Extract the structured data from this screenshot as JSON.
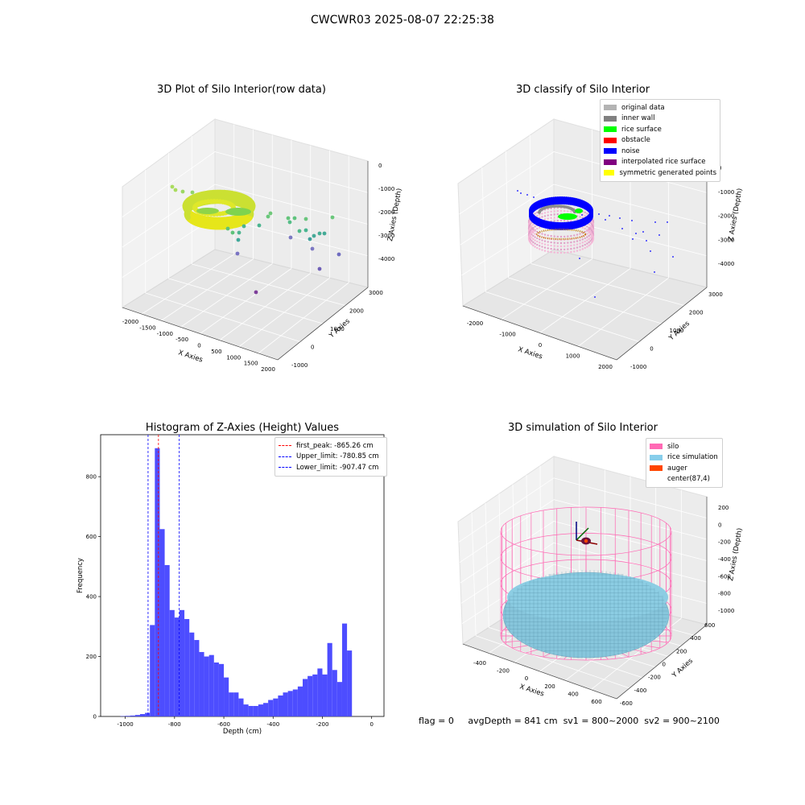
{
  "suptitle": "CWCWR03 2025-08-07 22:25:38",
  "panel1": {
    "title": "3D Plot of Silo Interior(row data)",
    "xlabel": "X Axies",
    "ylabel": "Y Axies",
    "zlabel": "Z Axies (Depth)",
    "xticks": [
      "-2000",
      "-1500",
      "-1000",
      "-500",
      "0",
      "500",
      "1000",
      "1500",
      "2000"
    ],
    "yticks": [
      "-1000",
      "0",
      "1000",
      "2000",
      "3000"
    ],
    "zticks": [
      "0",
      "-1000",
      "-2000",
      "-3000",
      "-4000"
    ]
  },
  "panel2": {
    "title": "3D classify of Silo Interior",
    "xlabel": "X Axies",
    "ylabel": "Y Axies",
    "zlabel": "Z Axies (Depth)",
    "xticks": [
      "-2000",
      "-1000",
      "0",
      "1000",
      "2000"
    ],
    "yticks": [
      "-1000",
      "0",
      "1000",
      "2000",
      "3000"
    ],
    "zticks": [
      "0",
      "-1000",
      "-2000",
      "-3000",
      "-4000"
    ],
    "legend": [
      {
        "label": "original data",
        "color": "#b3b3b3"
      },
      {
        "label": "inner wall",
        "color": "#808080"
      },
      {
        "label": "rice surface",
        "color": "#00ff00"
      },
      {
        "label": "obstacle",
        "color": "#ff0000"
      },
      {
        "label": "noise",
        "color": "#0000ff"
      },
      {
        "label": "interpolated rice surface",
        "color": "#800080"
      },
      {
        "label": "symmetric generated points",
        "color": "#ffff00"
      }
    ]
  },
  "panel3": {
    "title": "Histogram of Z-Axies (Height) Values",
    "xlabel": "Depth (cm)",
    "ylabel": "Frequency",
    "legend": [
      {
        "label": "first_peak: -865.26 cm",
        "color": "#ff0000"
      },
      {
        "label": "Upper_limit: -780.85 cm",
        "color": "#0000ff"
      },
      {
        "label": "Lower_limit: -907.47 cm",
        "color": "#0000ff"
      }
    ]
  },
  "panel4": {
    "title": "3D simulation of Silo Interior",
    "xlabel": "X Axies",
    "ylabel": "Y Axies",
    "zlabel": "Z Axies (Depth)",
    "xticks": [
      "-400",
      "-200",
      "0",
      "200",
      "400",
      "600"
    ],
    "yticks": [
      "-600",
      "-400",
      "-200",
      "0",
      "200",
      "400",
      "600"
    ],
    "zticks": [
      "200",
      "0",
      "-200",
      "-400",
      "-600",
      "-800",
      "-1000"
    ],
    "legend": [
      {
        "label": "silo",
        "color": "#ff69b4"
      },
      {
        "label": "rice simulation",
        "color": "#87ceeb"
      },
      {
        "label": "auger",
        "color": "#ff4500"
      },
      {
        "label": "center(87,4)",
        "color": ""
      }
    ]
  },
  "status": {
    "flag": "flag = 0",
    "avgdepth": "avgDepth = 841 cm",
    "sv1": "sv1 = 800~2000",
    "sv2": "sv2 = 900~2100"
  },
  "chart_data": [
    {
      "type": "scatter",
      "title": "3D Plot of Silo Interior(row data)",
      "xlabel": "X Axies",
      "ylabel": "Y Axies",
      "zlabel": "Z Axies (Depth)",
      "xlim": [
        -2000,
        2000
      ],
      "ylim": [
        -1000,
        3000
      ],
      "zlim": [
        -4000,
        0
      ]
    },
    {
      "type": "scatter",
      "title": "3D classify of Silo Interior",
      "xlabel": "X Axies",
      "ylabel": "Y Axies",
      "zlabel": "Z Axies (Depth)",
      "xlim": [
        -2000,
        2000
      ],
      "ylim": [
        -1000,
        3000
      ],
      "zlim": [
        -4000,
        0
      ],
      "series": [
        {
          "name": "original data"
        },
        {
          "name": "inner wall"
        },
        {
          "name": "rice surface"
        },
        {
          "name": "obstacle"
        },
        {
          "name": "noise"
        },
        {
          "name": "interpolated rice surface"
        },
        {
          "name": "symmetric generated points"
        }
      ]
    },
    {
      "type": "bar",
      "title": "Histogram of Z-Axies (Height) Values",
      "xlabel": "Depth (cm)",
      "ylabel": "Frequency",
      "xlim": [
        -1100,
        50
      ],
      "ylim": [
        0,
        940
      ],
      "xticks": [
        -1000,
        -800,
        -600,
        -400,
        -200,
        0
      ],
      "yticks": [
        0,
        200,
        400,
        600,
        800
      ],
      "bin_width": 20,
      "bin_starts": [
        -1020,
        -1000,
        -980,
        -960,
        -940,
        -920,
        -900,
        -880,
        -860,
        -840,
        -820,
        -800,
        -780,
        -760,
        -740,
        -720,
        -700,
        -680,
        -660,
        -640,
        -620,
        -600,
        -580,
        -560,
        -540,
        -520,
        -500,
        -480,
        -460,
        -440,
        -420,
        -400,
        -380,
        -360,
        -340,
        -320,
        -300,
        -280,
        -260,
        -240,
        -220,
        -200,
        -180,
        -160,
        -140,
        -120,
        -100,
        -80,
        -60,
        -40,
        -20
      ],
      "values": [
        1,
        2,
        3,
        5,
        8,
        12,
        305,
        895,
        625,
        505,
        355,
        330,
        355,
        325,
        280,
        255,
        215,
        200,
        205,
        180,
        175,
        130,
        80,
        80,
        60,
        40,
        35,
        35,
        40,
        45,
        55,
        60,
        70,
        80,
        85,
        90,
        100,
        125,
        135,
        140,
        160,
        140,
        245,
        155,
        115,
        310,
        220,
        0,
        0,
        0,
        0
      ],
      "vlines": [
        {
          "label": "first_peak: -865.26 cm",
          "x": -865.26,
          "color": "#ff0000"
        },
        {
          "label": "Upper_limit: -780.85 cm",
          "x": -780.85,
          "color": "#0000ff"
        },
        {
          "label": "Lower_limit: -907.47 cm",
          "x": -907.47,
          "color": "#0000ff"
        }
      ]
    },
    {
      "type": "area",
      "title": "3D simulation of Silo Interior",
      "xlabel": "X Axies",
      "ylabel": "Y Axies",
      "zlabel": "Z Axies (Depth)",
      "xlim": [
        -500,
        700
      ],
      "ylim": [
        -700,
        700
      ],
      "zlim": [
        -1000,
        250
      ],
      "series": [
        {
          "name": "silo"
        },
        {
          "name": "rice simulation"
        },
        {
          "name": "auger"
        },
        {
          "name": "center(87,4)"
        }
      ]
    }
  ]
}
